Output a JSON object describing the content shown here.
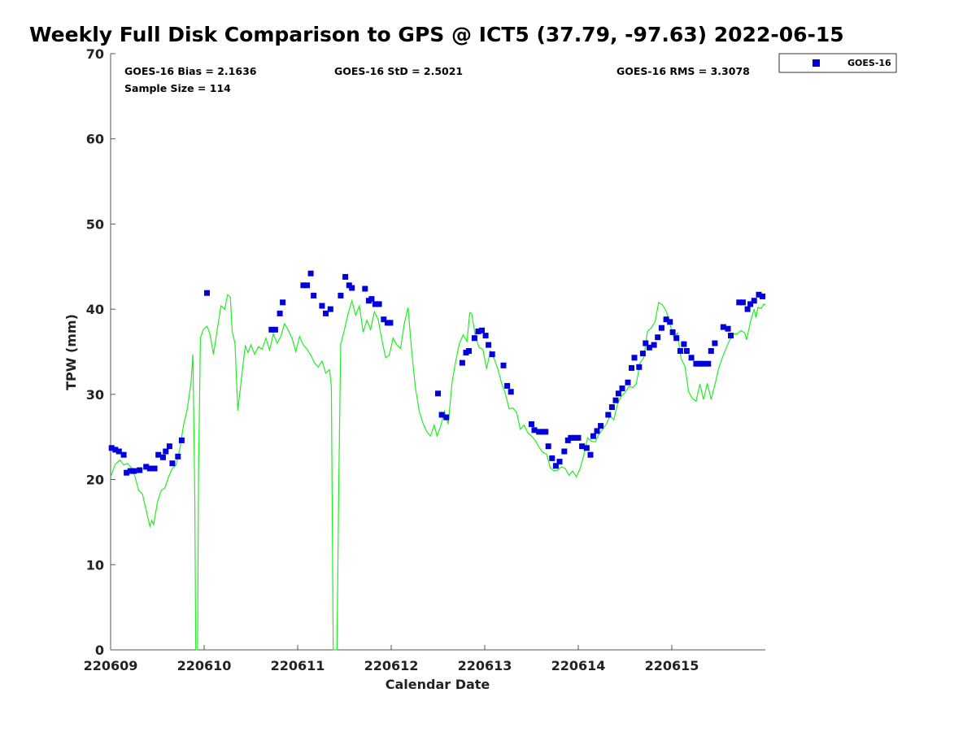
{
  "title": "Weekly Full Disk Comparison to GPS @ ICT5 (37.79, -97.63) 2022-06-15",
  "stats": {
    "bias": "GOES-16 Bias = 2.1636",
    "std": "GOES-16 StD = 2.5021",
    "rms": "GOES-16 RMS = 3.3078",
    "sample": "Sample Size = 114"
  },
  "legend": {
    "label": "GOES-16"
  },
  "colors": {
    "goes": "#0000dd",
    "gps": "#22ee22"
  },
  "chart_data": {
    "type": "scatter",
    "xlabel": "Calendar Date",
    "ylabel": "TPW (mm)",
    "xlim": [
      0,
      7.0
    ],
    "ylim": [
      0,
      70
    ],
    "x_ticks": [
      {
        "x": 0,
        "label": "220609"
      },
      {
        "x": 1,
        "label": "220610"
      },
      {
        "x": 2,
        "label": "220611"
      },
      {
        "x": 3,
        "label": "220612"
      },
      {
        "x": 4,
        "label": "220613"
      },
      {
        "x": 5,
        "label": "220614"
      },
      {
        "x": 6,
        "label": "220615"
      }
    ],
    "y_ticks": [
      0,
      10,
      20,
      30,
      40,
      50,
      60,
      70
    ],
    "series": [
      {
        "name": "GOES-16",
        "marker": "square",
        "points": [
          [
            0.01,
            23.7
          ],
          [
            0.05,
            23.5
          ],
          [
            0.09,
            23.3
          ],
          [
            0.14,
            22.9
          ],
          [
            0.17,
            20.8
          ],
          [
            0.21,
            21.0
          ],
          [
            0.25,
            21.0
          ],
          [
            0.31,
            21.1
          ],
          [
            0.38,
            21.5
          ],
          [
            0.42,
            21.3
          ],
          [
            0.47,
            21.3
          ],
          [
            0.51,
            22.9
          ],
          [
            0.56,
            22.6
          ],
          [
            0.59,
            23.3
          ],
          [
            0.63,
            23.9
          ],
          [
            0.66,
            21.9
          ],
          [
            0.72,
            22.7
          ],
          [
            0.76,
            24.6
          ],
          [
            1.03,
            41.9
          ],
          [
            1.72,
            37.6
          ],
          [
            1.76,
            37.6
          ],
          [
            1.81,
            39.5
          ],
          [
            1.84,
            40.8
          ],
          [
            2.06,
            42.8
          ],
          [
            2.1,
            42.8
          ],
          [
            2.14,
            44.2
          ],
          [
            2.17,
            41.6
          ],
          [
            2.26,
            40.4
          ],
          [
            2.3,
            39.5
          ],
          [
            2.35,
            40.0
          ],
          [
            2.46,
            41.6
          ],
          [
            2.51,
            43.8
          ],
          [
            2.55,
            42.8
          ],
          [
            2.58,
            42.5
          ],
          [
            2.72,
            42.4
          ],
          [
            2.76,
            41.0
          ],
          [
            2.79,
            41.2
          ],
          [
            2.83,
            40.6
          ],
          [
            2.87,
            40.6
          ],
          [
            2.92,
            38.8
          ],
          [
            2.96,
            38.4
          ],
          [
            2.99,
            38.4
          ],
          [
            3.5,
            30.1
          ],
          [
            3.54,
            27.6
          ],
          [
            3.59,
            27.3
          ],
          [
            3.76,
            33.7
          ],
          [
            3.8,
            34.9
          ],
          [
            3.83,
            35.1
          ],
          [
            3.89,
            36.6
          ],
          [
            3.93,
            37.4
          ],
          [
            3.97,
            37.5
          ],
          [
            4.01,
            36.9
          ],
          [
            4.04,
            35.8
          ],
          [
            4.08,
            34.7
          ],
          [
            4.2,
            33.4
          ],
          [
            4.24,
            31.0
          ],
          [
            4.28,
            30.3
          ],
          [
            4.5,
            26.5
          ],
          [
            4.53,
            25.8
          ],
          [
            4.58,
            25.6
          ],
          [
            4.62,
            25.6
          ],
          [
            4.65,
            25.6
          ],
          [
            4.68,
            23.9
          ],
          [
            4.72,
            22.5
          ],
          [
            4.76,
            21.6
          ],
          [
            4.8,
            22.1
          ],
          [
            4.85,
            23.3
          ],
          [
            4.89,
            24.6
          ],
          [
            4.92,
            24.9
          ],
          [
            4.96,
            24.9
          ],
          [
            5.0,
            24.9
          ],
          [
            5.04,
            23.9
          ],
          [
            5.09,
            23.7
          ],
          [
            5.13,
            22.9
          ],
          [
            5.16,
            25.1
          ],
          [
            5.2,
            25.7
          ],
          [
            5.24,
            26.3
          ],
          [
            5.32,
            27.6
          ],
          [
            5.36,
            28.5
          ],
          [
            5.4,
            29.3
          ],
          [
            5.43,
            30.1
          ],
          [
            5.47,
            30.7
          ],
          [
            5.53,
            31.4
          ],
          [
            5.57,
            33.1
          ],
          [
            5.6,
            34.3
          ],
          [
            5.65,
            33.2
          ],
          [
            5.69,
            34.8
          ],
          [
            5.72,
            36.0
          ],
          [
            5.76,
            35.5
          ],
          [
            5.81,
            35.8
          ],
          [
            5.85,
            36.7
          ],
          [
            5.89,
            37.8
          ],
          [
            5.94,
            38.8
          ],
          [
            5.98,
            38.5
          ],
          [
            6.01,
            37.3
          ],
          [
            6.05,
            36.6
          ],
          [
            6.09,
            35.1
          ],
          [
            6.13,
            35.9
          ],
          [
            6.16,
            35.1
          ],
          [
            6.21,
            34.3
          ],
          [
            6.26,
            33.6
          ],
          [
            6.3,
            33.6
          ],
          [
            6.34,
            33.6
          ],
          [
            6.39,
            33.6
          ],
          [
            6.42,
            35.1
          ],
          [
            6.46,
            36.0
          ],
          [
            6.55,
            37.9
          ],
          [
            6.6,
            37.7
          ],
          [
            6.63,
            36.9
          ],
          [
            6.72,
            40.8
          ],
          [
            6.76,
            40.8
          ],
          [
            6.81,
            40.0
          ],
          [
            6.84,
            40.6
          ],
          [
            6.88,
            41.0
          ],
          [
            6.93,
            41.7
          ],
          [
            6.97,
            41.5
          ]
        ]
      },
      {
        "marker": "line",
        "points": [
          [
            0.0,
            20.3
          ],
          [
            0.05,
            21.8
          ],
          [
            0.1,
            22.3
          ],
          [
            0.14,
            21.7
          ],
          [
            0.18,
            21.9
          ],
          [
            0.22,
            21.4
          ],
          [
            0.26,
            20.4
          ],
          [
            0.3,
            18.7
          ],
          [
            0.34,
            18.3
          ],
          [
            0.38,
            16.4
          ],
          [
            0.42,
            14.5
          ],
          [
            0.44,
            15.2
          ],
          [
            0.46,
            14.7
          ],
          [
            0.5,
            17.3
          ],
          [
            0.54,
            18.7
          ],
          [
            0.58,
            19.0
          ],
          [
            0.62,
            20.3
          ],
          [
            0.66,
            21.3
          ],
          [
            0.7,
            21.7
          ],
          [
            0.74,
            23.6
          ],
          [
            0.78,
            26.4
          ],
          [
            0.82,
            28.3
          ],
          [
            0.86,
            31.4
          ],
          [
            0.88,
            34.7
          ],
          [
            0.9,
            18.0
          ],
          [
            0.91,
            0
          ],
          [
            0.93,
            0
          ],
          [
            0.94,
            20.5
          ],
          [
            0.96,
            36.6
          ],
          [
            0.99,
            37.6
          ],
          [
            1.03,
            38.0
          ],
          [
            1.06,
            37.2
          ],
          [
            1.1,
            34.7
          ],
          [
            1.14,
            37.6
          ],
          [
            1.18,
            40.4
          ],
          [
            1.22,
            40.0
          ],
          [
            1.25,
            41.7
          ],
          [
            1.28,
            41.4
          ],
          [
            1.3,
            37.4
          ],
          [
            1.33,
            36.0
          ],
          [
            1.36,
            28.1
          ],
          [
            1.4,
            32.0
          ],
          [
            1.44,
            35.7
          ],
          [
            1.47,
            34.9
          ],
          [
            1.5,
            35.8
          ],
          [
            1.54,
            34.7
          ],
          [
            1.58,
            35.6
          ],
          [
            1.62,
            35.3
          ],
          [
            1.66,
            36.6
          ],
          [
            1.7,
            35.2
          ],
          [
            1.74,
            37.1
          ],
          [
            1.78,
            36.0
          ],
          [
            1.82,
            36.8
          ],
          [
            1.86,
            38.3
          ],
          [
            1.9,
            37.5
          ],
          [
            1.94,
            36.6
          ],
          [
            1.98,
            35.0
          ],
          [
            2.02,
            36.8
          ],
          [
            2.06,
            35.8
          ],
          [
            2.1,
            35.3
          ],
          [
            2.14,
            34.6
          ],
          [
            2.18,
            33.7
          ],
          [
            2.22,
            33.2
          ],
          [
            2.26,
            33.9
          ],
          [
            2.3,
            32.5
          ],
          [
            2.34,
            32.9
          ],
          [
            2.36,
            31.0
          ],
          [
            2.38,
            0
          ],
          [
            2.42,
            0
          ],
          [
            2.44,
            20.0
          ],
          [
            2.46,
            35.9
          ],
          [
            2.5,
            37.6
          ],
          [
            2.54,
            39.5
          ],
          [
            2.58,
            41.0
          ],
          [
            2.62,
            39.3
          ],
          [
            2.66,
            40.4
          ],
          [
            2.7,
            37.3
          ],
          [
            2.74,
            38.7
          ],
          [
            2.78,
            37.6
          ],
          [
            2.82,
            39.7
          ],
          [
            2.86,
            38.8
          ],
          [
            2.9,
            36.4
          ],
          [
            2.94,
            34.3
          ],
          [
            2.98,
            34.6
          ],
          [
            3.02,
            36.6
          ],
          [
            3.06,
            35.8
          ],
          [
            3.1,
            35.4
          ],
          [
            3.14,
            38.3
          ],
          [
            3.18,
            40.2
          ],
          [
            3.22,
            34.9
          ],
          [
            3.26,
            30.7
          ],
          [
            3.3,
            28.0
          ],
          [
            3.34,
            26.6
          ],
          [
            3.38,
            25.6
          ],
          [
            3.42,
            25.1
          ],
          [
            3.46,
            26.4
          ],
          [
            3.49,
            25.1
          ],
          [
            3.53,
            26.3
          ],
          [
            3.57,
            28.0
          ],
          [
            3.61,
            26.5
          ],
          [
            3.65,
            31.4
          ],
          [
            3.69,
            33.9
          ],
          [
            3.73,
            36.0
          ],
          [
            3.77,
            37.0
          ],
          [
            3.81,
            36.2
          ],
          [
            3.84,
            39.6
          ],
          [
            3.86,
            39.5
          ],
          [
            3.9,
            36.8
          ],
          [
            3.94,
            35.5
          ],
          [
            3.98,
            35.3
          ],
          [
            4.02,
            33.0
          ],
          [
            4.06,
            35.1
          ],
          [
            4.1,
            34.2
          ],
          [
            4.14,
            33.0
          ],
          [
            4.18,
            31.3
          ],
          [
            4.22,
            30.1
          ],
          [
            4.26,
            28.3
          ],
          [
            4.3,
            28.4
          ],
          [
            4.34,
            27.9
          ],
          [
            4.38,
            25.9
          ],
          [
            4.42,
            26.4
          ],
          [
            4.46,
            25.5
          ],
          [
            4.5,
            25.1
          ],
          [
            4.54,
            24.6
          ],
          [
            4.58,
            23.8
          ],
          [
            4.62,
            23.2
          ],
          [
            4.66,
            23.0
          ],
          [
            4.7,
            21.4
          ],
          [
            4.74,
            21.0
          ],
          [
            4.78,
            21.1
          ],
          [
            4.82,
            21.5
          ],
          [
            4.86,
            21.3
          ],
          [
            4.9,
            20.5
          ],
          [
            4.94,
            21.0
          ],
          [
            4.98,
            20.3
          ],
          [
            5.02,
            21.3
          ],
          [
            5.06,
            22.9
          ],
          [
            5.1,
            24.9
          ],
          [
            5.14,
            24.5
          ],
          [
            5.18,
            24.4
          ],
          [
            5.22,
            25.3
          ],
          [
            5.26,
            25.9
          ],
          [
            5.3,
            26.5
          ],
          [
            5.34,
            27.5
          ],
          [
            5.38,
            27.0
          ],
          [
            5.42,
            28.9
          ],
          [
            5.46,
            29.8
          ],
          [
            5.5,
            30.2
          ],
          [
            5.54,
            30.9
          ],
          [
            5.58,
            30.8
          ],
          [
            5.62,
            31.2
          ],
          [
            5.66,
            33.7
          ],
          [
            5.7,
            34.3
          ],
          [
            5.74,
            37.4
          ],
          [
            5.78,
            37.8
          ],
          [
            5.82,
            38.5
          ],
          [
            5.86,
            40.8
          ],
          [
            5.9,
            40.5
          ],
          [
            5.94,
            39.8
          ],
          [
            5.98,
            38.3
          ],
          [
            6.02,
            36.7
          ],
          [
            6.06,
            37.2
          ],
          [
            6.1,
            34.2
          ],
          [
            6.14,
            33.3
          ],
          [
            6.18,
            30.3
          ],
          [
            6.22,
            29.5
          ],
          [
            6.26,
            29.2
          ],
          [
            6.3,
            31.2
          ],
          [
            6.34,
            29.4
          ],
          [
            6.38,
            31.3
          ],
          [
            6.42,
            29.4
          ],
          [
            6.46,
            31.1
          ],
          [
            6.5,
            33.0
          ],
          [
            6.54,
            34.3
          ],
          [
            6.58,
            35.4
          ],
          [
            6.62,
            36.4
          ],
          [
            6.66,
            37.1
          ],
          [
            6.7,
            37.1
          ],
          [
            6.74,
            37.5
          ],
          [
            6.78,
            37.2
          ],
          [
            6.8,
            36.4
          ],
          [
            6.84,
            38.5
          ],
          [
            6.88,
            40.0
          ],
          [
            6.9,
            39.0
          ],
          [
            6.92,
            40.2
          ],
          [
            6.96,
            40.1
          ],
          [
            6.98,
            40.6
          ],
          [
            7.0,
            40.5
          ]
        ]
      }
    ]
  }
}
